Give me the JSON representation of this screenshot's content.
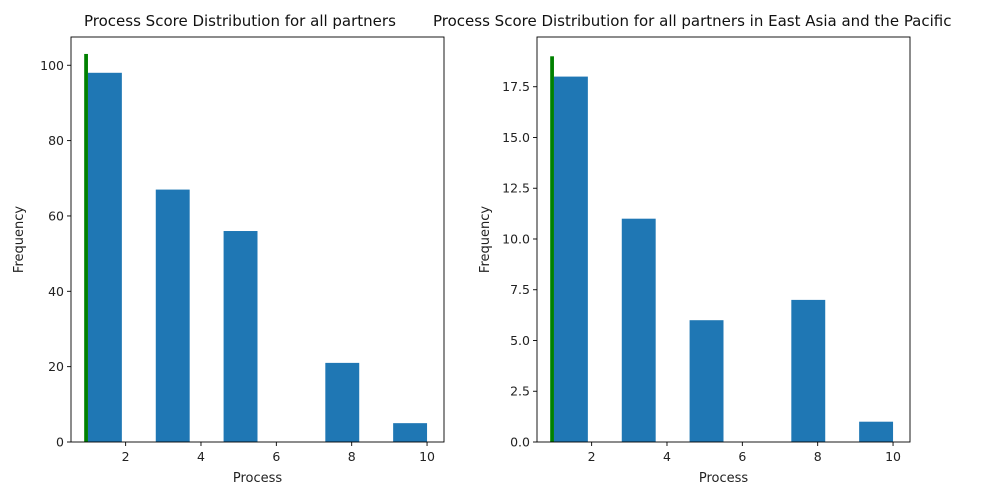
{
  "chart_data": [
    {
      "type": "bar",
      "title": "Process Score Distribution for all partners",
      "xlabel": "Process",
      "ylabel": "Frequency",
      "xlim": [
        0.55,
        10.45
      ],
      "ylim": [
        0,
        107.5
      ],
      "xticks": [
        "2",
        "4",
        "6",
        "8",
        "10"
      ],
      "yticks": [
        "0",
        "20",
        "40",
        "60",
        "80",
        "100"
      ],
      "grid": false,
      "series": [
        {
          "color": "#1f77b4",
          "bins": [
            {
              "x0": 1.0,
              "x1": 1.9,
              "value": 98
            },
            {
              "x0": 1.9,
              "x1": 2.8,
              "value": 0
            },
            {
              "x0": 2.8,
              "x1": 3.7,
              "value": 67
            },
            {
              "x0": 3.7,
              "x1": 4.6,
              "value": 0
            },
            {
              "x0": 4.6,
              "x1": 5.5,
              "value": 56
            },
            {
              "x0": 5.5,
              "x1": 6.4,
              "value": 0
            },
            {
              "x0": 6.4,
              "x1": 7.3,
              "value": 0
            },
            {
              "x0": 7.3,
              "x1": 8.2,
              "value": 21
            },
            {
              "x0": 8.2,
              "x1": 9.1,
              "value": 0
            },
            {
              "x0": 9.1,
              "x1": 10.0,
              "value": 5
            }
          ]
        },
        {
          "color": "#008000",
          "bins": [
            {
              "x0": 0.9,
              "x1": 1.0,
              "value": 103
            }
          ]
        }
      ]
    },
    {
      "type": "bar",
      "title": "Process Score Distribution for all partners in East Asia and the Pacific",
      "xlabel": "Process",
      "ylabel": "Frequency",
      "xlim": [
        0.55,
        10.45
      ],
      "ylim": [
        0,
        19.95
      ],
      "xticks": [
        "2",
        "4",
        "6",
        "8",
        "10"
      ],
      "yticks": [
        "0.0",
        "2.5",
        "5.0",
        "7.5",
        "10.0",
        "12.5",
        "15.0",
        "17.5"
      ],
      "grid": false,
      "series": [
        {
          "color": "#1f77b4",
          "bins": [
            {
              "x0": 1.0,
              "x1": 1.9,
              "value": 18
            },
            {
              "x0": 1.9,
              "x1": 2.8,
              "value": 0
            },
            {
              "x0": 2.8,
              "x1": 3.7,
              "value": 11
            },
            {
              "x0": 3.7,
              "x1": 4.6,
              "value": 0
            },
            {
              "x0": 4.6,
              "x1": 5.5,
              "value": 6
            },
            {
              "x0": 5.5,
              "x1": 6.4,
              "value": 0
            },
            {
              "x0": 6.4,
              "x1": 7.3,
              "value": 0
            },
            {
              "x0": 7.3,
              "x1": 8.2,
              "value": 7
            },
            {
              "x0": 8.2,
              "x1": 9.1,
              "value": 0
            },
            {
              "x0": 9.1,
              "x1": 10.0,
              "value": 1
            }
          ]
        },
        {
          "color": "#008000",
          "bins": [
            {
              "x0": 0.9,
              "x1": 1.0,
              "value": 19
            }
          ]
        }
      ]
    }
  ]
}
